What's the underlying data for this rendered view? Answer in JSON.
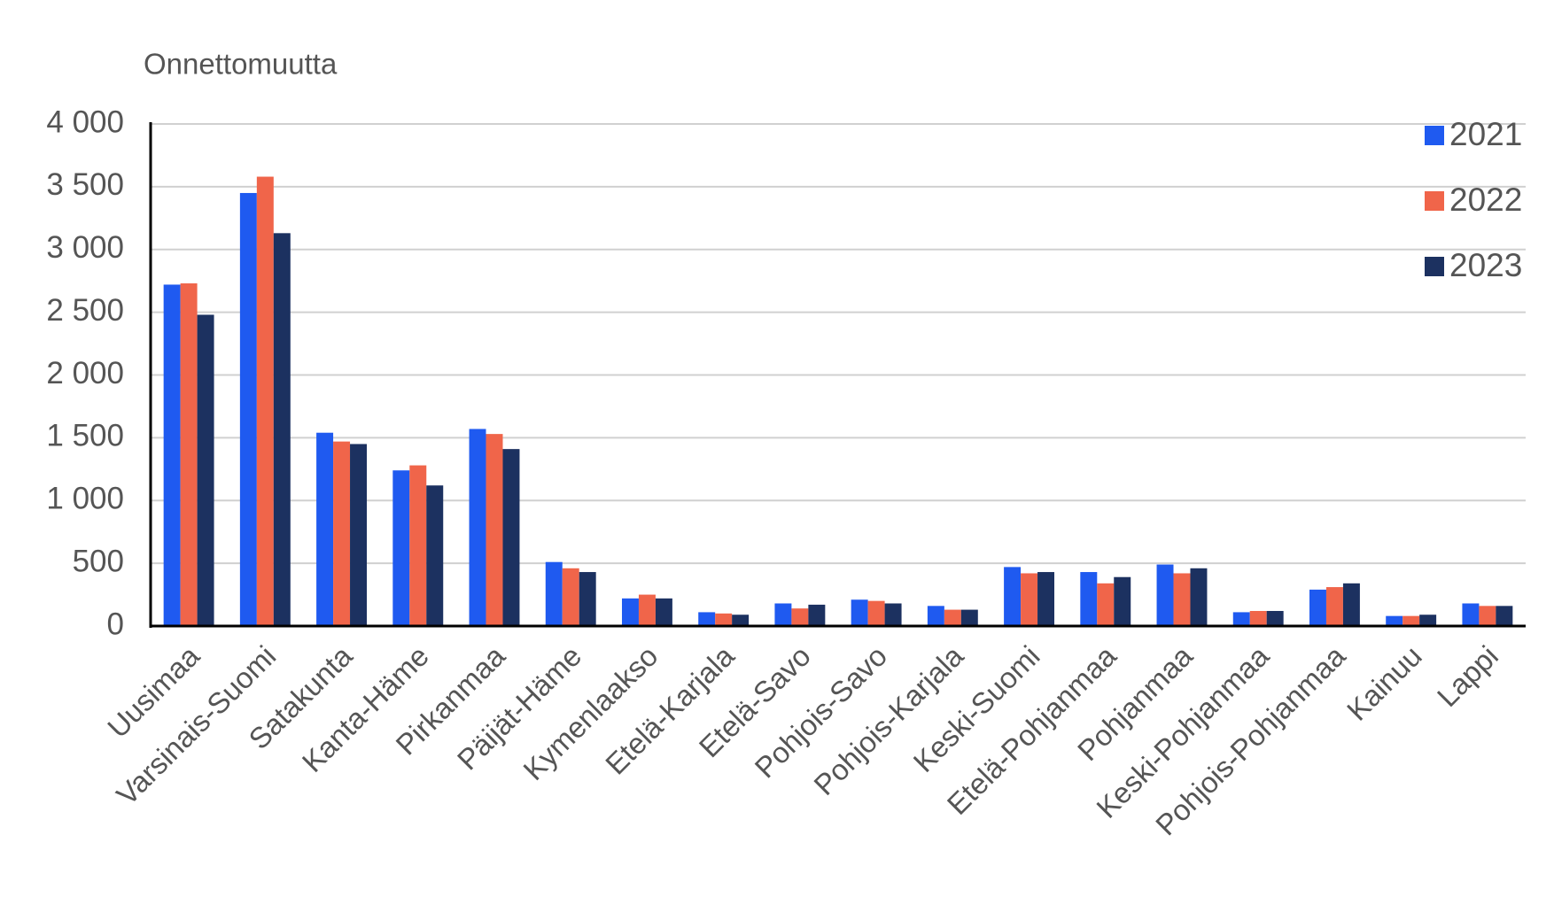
{
  "chart_data": {
    "type": "bar",
    "y_label": "Onnettomuutta",
    "categories": [
      "Uusimaa",
      "Varsinais-Suomi",
      "Satakunta",
      "Kanta-Häme",
      "Pirkanmaa",
      "Päijät-Häme",
      "Kymenlaakso",
      "Etelä-Karjala",
      "Etelä-Savo",
      "Pohjois-Savo",
      "Pohjois-Karjala",
      "Keski-Suomi",
      "Etelä-Pohjanmaa",
      "Pohjanmaa",
      "Keski-Pohjanmaa",
      "Pohjois-Pohjanmaa",
      "Kainuu",
      "Lappi"
    ],
    "series": [
      {
        "name": "2021",
        "color": "#1f5af0",
        "values": [
          2720,
          3450,
          1540,
          1240,
          1570,
          510,
          220,
          110,
          180,
          210,
          160,
          470,
          430,
          490,
          110,
          290,
          80,
          180
        ]
      },
      {
        "name": "2022",
        "color": "#f0654a",
        "values": [
          2730,
          3580,
          1470,
          1280,
          1530,
          460,
          250,
          100,
          140,
          200,
          130,
          420,
          340,
          420,
          120,
          310,
          80,
          160
        ]
      },
      {
        "name": "2023",
        "color": "#1c3160",
        "values": [
          2480,
          3130,
          1450,
          1120,
          1410,
          430,
          220,
          90,
          170,
          180,
          130,
          430,
          390,
          460,
          120,
          340,
          90,
          160
        ]
      }
    ],
    "ylim": [
      0,
      4000
    ],
    "yticks": [
      0,
      500,
      {
        "value": 1000,
        "label": "1 000"
      },
      {
        "value": 1500,
        "label": "1 500"
      },
      {
        "value": 2000,
        "label": "2 000"
      },
      {
        "value": 2500,
        "label": "2 500"
      },
      {
        "value": 3000,
        "label": "3 000"
      },
      {
        "value": 3500,
        "label": "3 500"
      },
      {
        "value": 4000,
        "label": "4 000"
      }
    ],
    "grid": true,
    "legend": "top-right"
  }
}
